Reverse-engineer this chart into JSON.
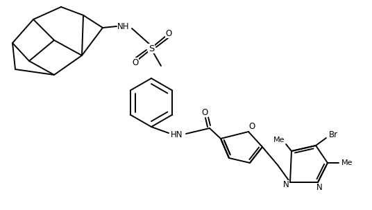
{
  "background_color": "#ffffff",
  "bond_color": "#000000",
  "line_width": 1.4,
  "figsize": [
    5.36,
    3.03
  ],
  "dpi": 100,
  "fs": 8.5,
  "labels": {
    "NH": "NH",
    "S": "S",
    "O": "O",
    "HN": "HN",
    "N": "N",
    "Br": "Br",
    "Me": "Me"
  }
}
